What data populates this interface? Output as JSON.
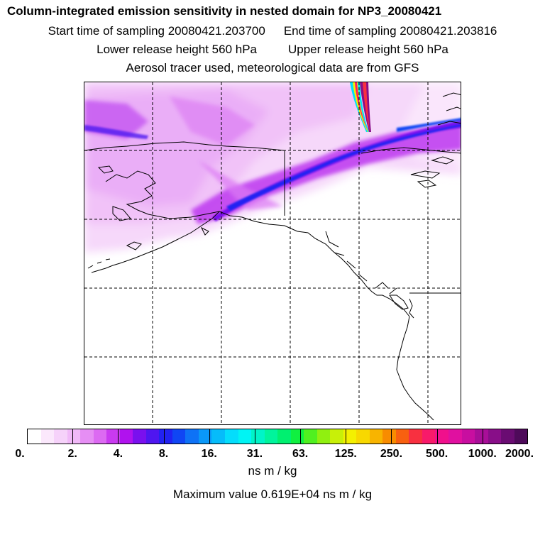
{
  "title": "Column-integrated emission sensitivity in nested domain for NP3_20080421",
  "start_time": "Start time of sampling 20080421.203700",
  "end_time": "End time of sampling 20080421.203816",
  "lower_release": "Lower release height  560 hPa",
  "upper_release": "Upper release height  560 hPa",
  "tracer_info": "Aerosol tracer used, meteorological data are from GFS",
  "colorbar": {
    "labels": [
      "0.",
      "2.",
      "4.",
      "8.",
      "16.",
      "31.",
      "63.",
      "125.",
      "250.",
      "500.",
      "1000.",
      "2000."
    ],
    "colors": [
      "#ffffff",
      "#fbe8fc",
      "#f6d2fa",
      "#f1b9f8",
      "#e68ef4",
      "#dc6af2",
      "#c93af0",
      "#b012ee",
      "#7a10ee",
      "#4f16f0",
      "#2222f2",
      "#1046f4",
      "#0e72f6",
      "#0a98f8",
      "#06bcfa",
      "#04ddfc",
      "#00f4f4",
      "#00f4c8",
      "#00f49c",
      "#00f070",
      "#10f040",
      "#50f020",
      "#90f010",
      "#c8f008",
      "#f4f000",
      "#f8d800",
      "#f8b400",
      "#f88c00",
      "#f86010",
      "#f83040",
      "#f81a6a",
      "#f0108c",
      "#e010a0",
      "#c80ea0",
      "#a80e98",
      "#880e88",
      "#6a0c72",
      "#4e0a5a"
    ]
  },
  "units": "ns m / kg",
  "maximum_value": "Maximum value  0.619E+04 ns m / kg"
}
